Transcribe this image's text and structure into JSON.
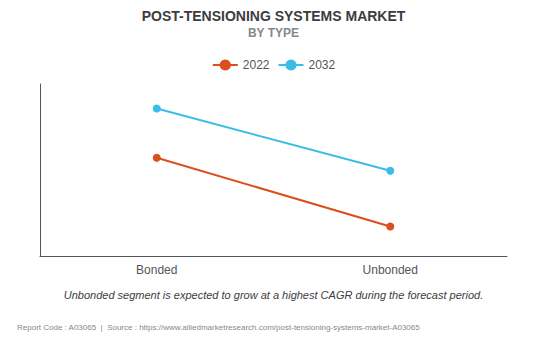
{
  "chart_data": {
    "type": "line",
    "title": "POST-TENSIONING SYSTEMS MARKET",
    "subtitle": "BY TYPE",
    "categories": [
      "Bonded",
      "Unbonded"
    ],
    "series": [
      {
        "name": "2022",
        "color": "#d94f1e",
        "values": [
          0.6,
          0.18
        ]
      },
      {
        "name": "2032",
        "color": "#3bbde8",
        "values": [
          0.9,
          0.52
        ]
      }
    ],
    "ylim": [
      0.0,
      1.05
    ],
    "tick_labels": "x",
    "grid": false,
    "legend": "top",
    "marker": "circle",
    "annotations": [
      "Unbonded segment is expected to grow at a highest CAGR during the forecast period.",
      "Report Code : A03065  |  Source : https://www.alliedmarketresearch.com/post-tensioning-systems-market-A03065"
    ]
  }
}
